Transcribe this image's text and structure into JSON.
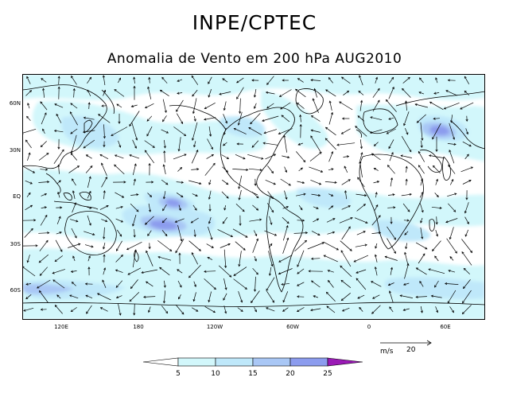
{
  "header": {
    "title": "INPE/CPTEC",
    "subtitle": "Anomalia de Vento em 200 hPa AUG2010"
  },
  "axes": {
    "lat_labels": [
      "60N",
      "30N",
      "EQ",
      "30S",
      "60S"
    ],
    "lon_labels": [
      "120E",
      "180",
      "120W",
      "60W",
      "0",
      "60E"
    ]
  },
  "reference_vector": {
    "units": "m/s",
    "value": "20"
  },
  "colorbar": {
    "ticks": [
      "5",
      "10",
      "15",
      "20",
      "25"
    ],
    "colors": [
      "#ffffff",
      "#d2f7fb",
      "#bfe8fa",
      "#a9c7f5",
      "#8c9cee",
      "#6a6ae6",
      "#9a1ab5"
    ]
  },
  "map_colors": {
    "ocean": "#ffffff",
    "coast": "#000000",
    "arrow": "#000000"
  }
}
